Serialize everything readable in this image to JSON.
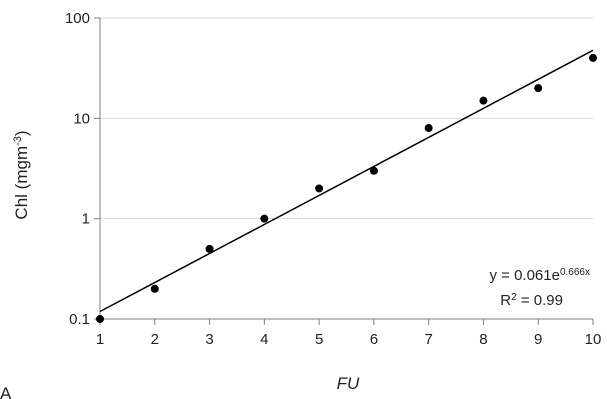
{
  "chart_data": {
    "type": "scatter",
    "panel_label": "A",
    "xlabel": "FU",
    "ylabel_main": "Chl (mgm",
    "ylabel_sup": "-3",
    "ylabel_close": ")",
    "x_ticks": [
      1,
      2,
      3,
      4,
      5,
      6,
      7,
      8,
      9,
      10
    ],
    "y_ticks": [
      0.1,
      1,
      10,
      100
    ],
    "y_tick_labels": [
      "0.1",
      "1",
      "10",
      "100"
    ],
    "x_range": [
      1,
      10
    ],
    "y_range": [
      0.1,
      100
    ],
    "y_scale": "log",
    "grid": "horizontal",
    "series": [
      {
        "x": [
          1,
          2,
          3,
          4,
          5,
          6,
          7,
          8,
          9,
          10
        ],
        "y": [
          0.1,
          0.2,
          0.5,
          1.0,
          2.0,
          3.0,
          8.0,
          15.0,
          20.0,
          40.0
        ]
      }
    ],
    "trendline": {
      "a": 0.061,
      "b": 0.666,
      "x_from": 1,
      "x_to": 10
    },
    "equation": {
      "base": "y = 0.061e",
      "exponent": "0.666x",
      "r2_label": "R",
      "r2_sup": "2",
      "r2_value": " = 0.99"
    },
    "colors": {
      "axis": "#7f7f7f",
      "grid": "#d9d9d9",
      "point": "#000000",
      "line": "#000000"
    }
  }
}
